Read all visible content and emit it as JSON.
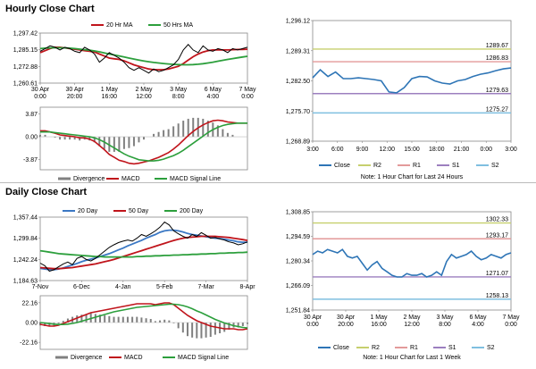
{
  "titles": {
    "hourly": "Hourly Close Chart",
    "daily": "Daily Close Chart"
  },
  "colors": {
    "price": "#000000",
    "ma_short": "#c0141b",
    "ma_mid": "#2c9f3c",
    "ma_long": "#3b78c4",
    "macd": "#c0141b",
    "signal": "#2c9f3c",
    "divergence": "#808080",
    "close": "#2e75b6",
    "r2": "#c6cf6e",
    "r1": "#e39a9a",
    "s1": "#9c7fbf",
    "s2": "#7fbfe0"
  },
  "chart_data": [
    {
      "id": "hourly_price",
      "type": "line",
      "y_ticks": [
        "1,297.42",
        "1,285.15",
        "1,272.88",
        "1,260.61"
      ],
      "ylim": [
        1260.61,
        1297.42
      ],
      "x_ticks": [
        [
          "30 Apr",
          "0:00"
        ],
        [
          "30 Apr",
          "20:00"
        ],
        [
          "1 May",
          "16:00"
        ],
        [
          "2 May",
          "12:00"
        ],
        [
          "3 May",
          "8:00"
        ],
        [
          "6 May",
          "4:00"
        ],
        [
          "7 May",
          "0:00"
        ]
      ],
      "legend": [
        "20 Hr MA",
        "50 Hrs MA"
      ],
      "series": [
        {
          "role": "price",
          "values": [
            1284,
            1286,
            1288,
            1287,
            1285,
            1287,
            1286,
            1284,
            1283,
            1287,
            1285,
            1282,
            1276,
            1279,
            1283,
            1281,
            1279,
            1276,
            1272,
            1270,
            1272,
            1270,
            1268,
            1271,
            1269,
            1270,
            1272,
            1274,
            1278,
            1285,
            1289,
            1285,
            1283,
            1288,
            1285,
            1284,
            1286,
            1285,
            1283,
            1286,
            1285,
            1286,
            1287
          ]
        },
        {
          "role": "ma_short",
          "name": "20 Hr MA",
          "values": [
            1283,
            1284.5,
            1286,
            1287,
            1287,
            1286.5,
            1286,
            1285.5,
            1285,
            1284.5,
            1284,
            1283.5,
            1282,
            1280.5,
            1279,
            1278.5,
            1278,
            1277,
            1275.5,
            1274,
            1273,
            1272,
            1271,
            1270.5,
            1270.5,
            1270.5,
            1271,
            1272,
            1273,
            1275,
            1277.5,
            1280,
            1282,
            1283.5,
            1284.5,
            1285,
            1285,
            1285,
            1285,
            1285.2,
            1285.3,
            1285.4,
            1285.5
          ]
        },
        {
          "role": "ma_mid",
          "name": "50 Hrs MA",
          "values": [
            1286,
            1286.3,
            1286.5,
            1286.6,
            1286.6,
            1286.5,
            1286.3,
            1286,
            1285.6,
            1285.2,
            1284.8,
            1284.3,
            1283.6,
            1282.8,
            1282,
            1281.3,
            1280.6,
            1279.8,
            1279,
            1278.3,
            1277.6,
            1276.9,
            1276.3,
            1275.8,
            1275.4,
            1275,
            1274.7,
            1274.4,
            1274.2,
            1274.1,
            1274.1,
            1274.2,
            1274.5,
            1274.9,
            1275.4,
            1276,
            1276.7,
            1277.4,
            1278,
            1278.6,
            1279.2,
            1279.8,
            1280.3
          ]
        }
      ]
    },
    {
      "id": "hourly_macd",
      "type": "line",
      "y_ticks": [
        "3.87",
        "0.00",
        "-3.87"
      ],
      "ylim": [
        -5.6,
        5.0
      ],
      "legend": [
        "Divergence",
        "MACD",
        "MACD Signal Line"
      ],
      "series": [
        {
          "role": "macd",
          "name": "MACD",
          "values": [
            1,
            1,
            0.8,
            0.6,
            0.3,
            0.2,
            0.1,
            0,
            -0.2,
            -0.2,
            -0.4,
            -0.8,
            -1.5,
            -2.2,
            -3,
            -3.5,
            -4,
            -4.2,
            -4.5,
            -4.6,
            -4.5,
            -4.3,
            -4.1,
            -3.8,
            -3.5,
            -3.1,
            -2.7,
            -2.1,
            -1.4,
            -0.6,
            0.2,
            0.9,
            1.5,
            2,
            2.4,
            2.7,
            2.8,
            2.7,
            2.5,
            2.4,
            2.3,
            2.3,
            2.3
          ]
        },
        {
          "role": "signal",
          "name": "MACD Signal Line",
          "values": [
            0.8,
            0.8,
            0.8,
            0.7,
            0.6,
            0.5,
            0.4,
            0.3,
            0.2,
            0.1,
            0,
            -0.2,
            -0.5,
            -0.9,
            -1.4,
            -1.9,
            -2.4,
            -2.9,
            -3.3,
            -3.6,
            -3.9,
            -4,
            -4.1,
            -4.1,
            -4,
            -3.8,
            -3.5,
            -3.2,
            -2.8,
            -2.3,
            -1.7,
            -1.1,
            -0.5,
            0.1,
            0.7,
            1.2,
            1.6,
            1.9,
            2.1,
            2.2,
            2.3,
            2.3,
            2.3
          ]
        }
      ]
    },
    {
      "id": "hourly_levels",
      "type": "line",
      "y_ticks": [
        "1,296.12",
        "1,289.31",
        "1,282.50",
        "1,275.70",
        "1,268.89"
      ],
      "ylim": [
        1268.89,
        1296.12
      ],
      "x_ticks": [
        "3:00",
        "6:00",
        "9:00",
        "12:00",
        "15:00",
        "18:00",
        "21:00",
        "0:00",
        "3:00"
      ],
      "levels": [
        {
          "role": "r2",
          "value": 1289.67,
          "label": "1289.67"
        },
        {
          "role": "r1",
          "value": 1286.83,
          "label": "1286.83"
        },
        {
          "role": "s1",
          "value": 1279.63,
          "label": "1279.63"
        },
        {
          "role": "s2",
          "value": 1275.27,
          "label": "1275.27"
        }
      ],
      "series": [
        {
          "role": "close",
          "name": "Close",
          "values": [
            1283.2,
            1285,
            1283.5,
            1284.5,
            1283,
            1283,
            1283.2,
            1283,
            1282.8,
            1282.5,
            1280,
            1279.8,
            1281,
            1283,
            1283.5,
            1283.4,
            1282.5,
            1282,
            1281.8,
            1282.5,
            1282.8,
            1283.5,
            1284,
            1284.3,
            1284.8,
            1285.2,
            1285.4
          ]
        }
      ],
      "legend": [
        "Close",
        "R2",
        "R1",
        "S1",
        "S2"
      ],
      "note": "Note: 1 Hour Chart for Last 24 Hours"
    },
    {
      "id": "daily_price",
      "type": "line",
      "y_ticks": [
        "1,357.44",
        "1,299.84",
        "1,242.24",
        "1,184.63"
      ],
      "ylim": [
        1184.63,
        1357.44
      ],
      "x_ticks": [
        "7-Nov",
        "6-Dec",
        "4-Jan",
        "5-Feb",
        "7-Mar",
        "8-Apr"
      ],
      "legend": [
        "20 Day",
        "50 Day",
        "200 Day"
      ],
      "series": [
        {
          "role": "price",
          "values": [
            1232,
            1225,
            1210,
            1214,
            1222,
            1230,
            1235,
            1228,
            1245,
            1250,
            1242,
            1238,
            1245,
            1255,
            1265,
            1275,
            1282,
            1288,
            1292,
            1295,
            1292,
            1300,
            1310,
            1305,
            1312,
            1320,
            1330,
            1344,
            1336,
            1320,
            1312,
            1305,
            1300,
            1310,
            1305,
            1315,
            1308,
            1300,
            1302,
            1298,
            1295,
            1290,
            1287,
            1282,
            1285,
            1290
          ]
        },
        {
          "role": "ma_long",
          "name": "20 Day",
          "values": [
            1218,
            1216,
            1214,
            1214,
            1216,
            1219,
            1223,
            1227,
            1231,
            1236,
            1240,
            1243,
            1246,
            1250,
            1254,
            1258,
            1263,
            1268,
            1273,
            1279,
            1284,
            1289,
            1294,
            1300,
            1305,
            1310,
            1316,
            1320,
            1322,
            1322,
            1320,
            1317,
            1313,
            1310,
            1308,
            1306,
            1304,
            1302,
            1300,
            1299,
            1297,
            1295,
            1293,
            1290,
            1289,
            1289
          ]
        },
        {
          "role": "ma_short",
          "name": "50 Day",
          "values": [
            1220,
            1219,
            1218,
            1217,
            1217,
            1218,
            1219,
            1220,
            1222,
            1224,
            1226,
            1228,
            1230,
            1233,
            1236,
            1239,
            1242,
            1246,
            1250,
            1254,
            1258,
            1262,
            1266,
            1270,
            1274,
            1278,
            1282,
            1286,
            1290,
            1294,
            1297,
            1300,
            1302,
            1303,
            1304,
            1305,
            1305,
            1305,
            1305,
            1304,
            1303,
            1302,
            1300,
            1298,
            1296,
            1294
          ]
        },
        {
          "role": "ma_mid",
          "name": "200 Day",
          "values": [
            1266,
            1264,
            1262,
            1260,
            1258,
            1257,
            1256,
            1255,
            1254,
            1253,
            1252,
            1251,
            1250,
            1250,
            1249,
            1249,
            1249,
            1249,
            1249,
            1249,
            1249,
            1250,
            1250,
            1251,
            1251,
            1252,
            1252,
            1253,
            1253,
            1254,
            1254,
            1255,
            1255,
            1256,
            1256,
            1257,
            1257,
            1258,
            1258,
            1259,
            1259,
            1260,
            1260,
            1261,
            1261,
            1262
          ]
        }
      ]
    },
    {
      "id": "daily_macd",
      "type": "line",
      "y_ticks": [
        "22.16",
        "0.00",
        "-22.16"
      ],
      "ylim": [
        -30,
        30
      ],
      "legend": [
        "Divergence",
        "MACD",
        "MACD Signal Line"
      ],
      "series": [
        {
          "role": "macd",
          "name": "MACD",
          "values": [
            -2,
            -3,
            -4,
            -4,
            -3,
            -1,
            1,
            3,
            5,
            7,
            9,
            11,
            12,
            13,
            14,
            15,
            16,
            17,
            18,
            19,
            20,
            21,
            21,
            21,
            21,
            20,
            21,
            22,
            22,
            20,
            16,
            12,
            8,
            5,
            2,
            0,
            -2,
            -4,
            -5,
            -6,
            -7,
            -7,
            -7,
            -8,
            -8,
            -7
          ]
        },
        {
          "role": "signal",
          "name": "MACD Signal Line",
          "values": [
            0,
            -0.5,
            -1.2,
            -1.8,
            -2.2,
            -2.2,
            -1.8,
            -1,
            0,
            1.5,
            3,
            4.5,
            6,
            7.5,
            9,
            10.5,
            12,
            13,
            14,
            15,
            16,
            17,
            17.5,
            18,
            18.5,
            19,
            19.5,
            20,
            20.5,
            20.5,
            20,
            19,
            17.5,
            15.5,
            13,
            11,
            8.5,
            6,
            3.5,
            1.5,
            -0.5,
            -2,
            -3.5,
            -4.5,
            -5.5,
            -6
          ]
        }
      ]
    },
    {
      "id": "daily_levels",
      "type": "line",
      "y_ticks": [
        "1,308.85",
        "1,294.59",
        "1,280.34",
        "1,266.09",
        "1,251.84"
      ],
      "ylim": [
        1251.84,
        1308.85
      ],
      "x_ticks": [
        [
          "30 Apr",
          "0:00"
        ],
        [
          "30 Apr",
          "20:00"
        ],
        [
          "1 May",
          "16:00"
        ],
        [
          "2 May",
          "12:00"
        ],
        [
          "3 May",
          "8:00"
        ],
        [
          "6 May",
          "4:00"
        ],
        [
          "7 May",
          "0:00"
        ]
      ],
      "levels": [
        {
          "role": "r2",
          "value": 1302.33,
          "label": "1302.33"
        },
        {
          "role": "r1",
          "value": 1293.17,
          "label": "1293.17"
        },
        {
          "role": "s1",
          "value": 1271.07,
          "label": "1271.07"
        },
        {
          "role": "s2",
          "value": 1258.13,
          "label": "1258.13"
        }
      ],
      "series": [
        {
          "role": "close",
          "name": "Close",
          "values": [
            1284,
            1286,
            1285,
            1287,
            1286,
            1285,
            1287,
            1283,
            1282,
            1283,
            1279,
            1275,
            1278,
            1280,
            1276,
            1274,
            1272,
            1271,
            1271,
            1273,
            1272,
            1272,
            1273,
            1271,
            1272,
            1274,
            1272,
            1280,
            1284,
            1282,
            1283,
            1284,
            1286,
            1283,
            1281,
            1282,
            1284,
            1283,
            1282,
            1284,
            1285
          ]
        }
      ],
      "legend": [
        "Close",
        "R2",
        "R1",
        "S1",
        "S2"
      ],
      "note": "Note: 1 Hour Chart for Last 1 Week"
    }
  ]
}
